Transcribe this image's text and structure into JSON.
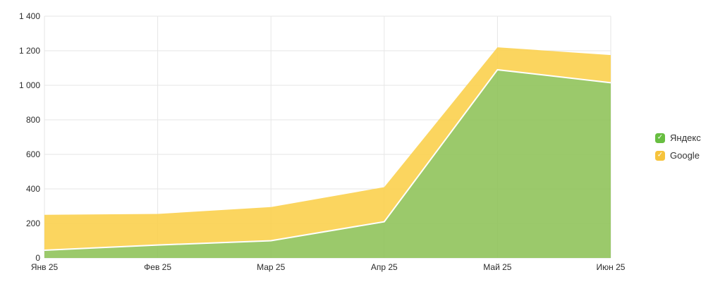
{
  "chart_data": {
    "type": "area",
    "stacked": true,
    "title": "",
    "xlabel": "",
    "ylabel": "",
    "categories": [
      "Янв 25",
      "Фев 25",
      "Мар 25",
      "Апр 25",
      "Май 25",
      "Июн 25"
    ],
    "series": [
      {
        "name": "Яндекс",
        "values": [
          45,
          75,
          100,
          210,
          1090,
          1015
        ],
        "area_color": "#8ABF51",
        "legend_swatch_color": "#68BE41"
      },
      {
        "name": "Google",
        "values": [
          205,
          180,
          195,
          200,
          130,
          160
        ],
        "area_color": "#FACE43",
        "legend_swatch_color": "#F6C33C"
      }
    ],
    "stacked_totals": [
      250,
      255,
      295,
      410,
      1220,
      1175
    ],
    "ylim": [
      0,
      1400
    ],
    "yticks": {
      "values": [
        0,
        200,
        400,
        600,
        800,
        1000,
        1200,
        1400
      ],
      "labels": [
        "0",
        "200",
        "400",
        "600",
        "800",
        "1 000",
        "1 200",
        "1 400"
      ]
    },
    "grid": true,
    "grid_color": "#E6E6E6",
    "series_separator_color": "#FFFFFF",
    "fill_opacity": 0.85,
    "axis_text_color": "#2b2b2b",
    "legend_position": "right",
    "legend_check_glyph": "✓"
  }
}
